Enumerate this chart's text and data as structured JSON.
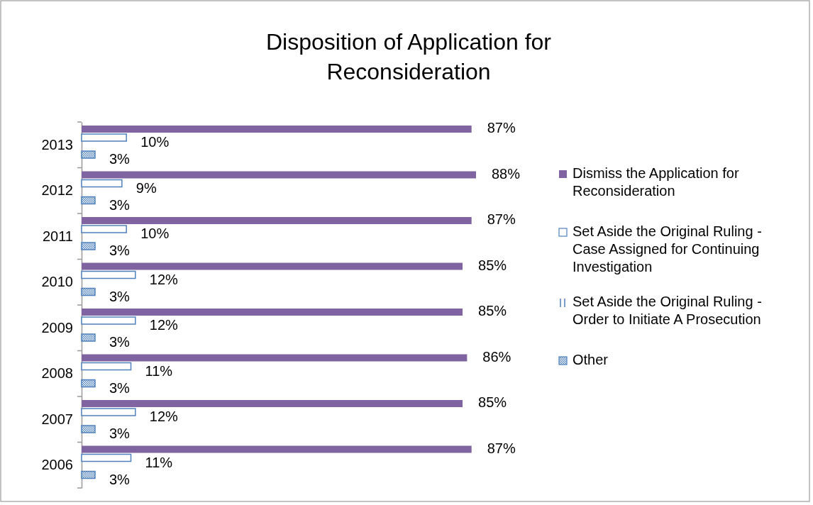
{
  "chart_data": {
    "type": "bar",
    "orientation": "horizontal",
    "title": "Disposition of Application for Reconsideration",
    "categories": [
      "2013",
      "2012",
      "2011",
      "2010",
      "2009",
      "2008",
      "2007",
      "2006"
    ],
    "tick_labels": "y",
    "legend": "right",
    "series": [
      {
        "name": "Dismiss the Application for Reconsideration",
        "color": "#8064a2",
        "values": [
          87,
          88,
          87,
          85,
          85,
          86,
          85,
          87
        ],
        "value_labels": [
          "87%",
          "88%",
          "87%",
          "85%",
          "85%",
          "86%",
          "85%",
          "87%"
        ]
      },
      {
        "name": "Set Aside the Original Ruling - Case Assigned for Continuing Investigation",
        "color": "#4f81bd",
        "values": [
          10,
          9,
          10,
          12,
          12,
          11,
          12,
          11
        ],
        "value_labels": [
          "10%",
          "9%",
          "10%",
          "12%",
          "12%",
          "11%",
          "12%",
          "11%"
        ]
      },
      {
        "name": "Set Aside the Original Ruling - Order to Initiate A Prosecution",
        "color": "#4f81bd",
        "values": [
          null,
          null,
          null,
          null,
          null,
          null,
          null,
          null
        ]
      },
      {
        "name": "Other",
        "color": "#4f81bd",
        "values": [
          3,
          3,
          3,
          3,
          3,
          3,
          3,
          3
        ],
        "value_labels": [
          "3%",
          "3%",
          "3%",
          "3%",
          "3%",
          "3%",
          "3%",
          "3%"
        ]
      }
    ]
  }
}
